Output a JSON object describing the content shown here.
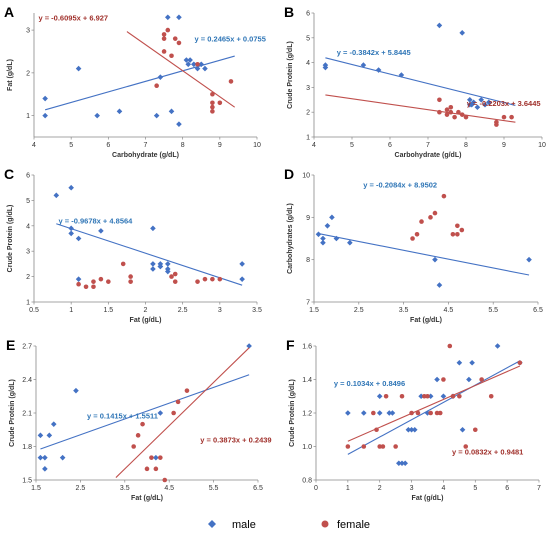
{
  "colors": {
    "male": "#4472C4",
    "female": "#C0504D",
    "male_eq": "#2E75B6",
    "female_eq": "#A0302B"
  },
  "legend": {
    "male": "male",
    "female": "female"
  },
  "chart_data": [
    {
      "type": "scatter",
      "panel": "A",
      "xlabel": "Carbohydrate (g/dL)",
      "ylabel": "Fat (g/dL)",
      "xlim": [
        4,
        10
      ],
      "ylim": [
        0.5,
        3.4
      ],
      "xticks": [
        4,
        5,
        6,
        7,
        8,
        9,
        10
      ],
      "yticks": [
        1,
        2,
        3
      ],
      "series": [
        {
          "name": "male",
          "points": [
            [
              4.3,
              1.4
            ],
            [
              4.3,
              1.0
            ],
            [
              5.2,
              2.1
            ],
            [
              5.7,
              1.0
            ],
            [
              6.3,
              1.1
            ],
            [
              7.3,
              1.0
            ],
            [
              7.4,
              1.9
            ],
            [
              7.6,
              3.3
            ],
            [
              7.7,
              1.1
            ],
            [
              7.9,
              3.3
            ],
            [
              7.9,
              0.8
            ],
            [
              8.1,
              2.3
            ],
            [
              8.15,
              2.2
            ],
            [
              8.2,
              2.3
            ],
            [
              8.3,
              2.2
            ],
            [
              8.4,
              2.1
            ],
            [
              8.5,
              2.2
            ],
            [
              8.6,
              2.1
            ]
          ],
          "trend": {
            "slope": 0.2465,
            "intercept": 0.0755,
            "x": [
              4.3,
              9.4
            ],
            "label": "y = 0.2465x + 0.0755"
          }
        },
        {
          "name": "female",
          "points": [
            [
              7.3,
              1.7
            ],
            [
              7.5,
              2.9
            ],
            [
              7.5,
              2.8
            ],
            [
              7.6,
              3.0
            ],
            [
              7.8,
              2.8
            ],
            [
              7.9,
              2.7
            ],
            [
              7.5,
              2.5
            ],
            [
              7.7,
              2.4
            ],
            [
              8.8,
              1.5
            ],
            [
              8.8,
              1.3
            ],
            [
              8.8,
              1.2
            ],
            [
              8.8,
              1.1
            ],
            [
              9.0,
              1.3
            ],
            [
              9.3,
              1.8
            ],
            [
              8.4,
              2.2
            ]
          ],
          "trend": {
            "slope": -0.6095,
            "intercept": 6.927,
            "x": [
              6.5,
              9.4
            ],
            "label": "y = -0.6095x + 6.927"
          }
        }
      ]
    },
    {
      "type": "scatter",
      "panel": "B",
      "xlabel": "Carbohydrate (g/dL)",
      "ylabel": "Crude Protein (g/dL)",
      "xlim": [
        4,
        10
      ],
      "ylim": [
        1,
        6
      ],
      "xticks": [
        4,
        5,
        6,
        7,
        8,
        9,
        10
      ],
      "yticks": [
        1,
        2,
        3,
        4,
        5,
        6
      ],
      "series": [
        {
          "name": "male",
          "points": [
            [
              4.3,
              3.8
            ],
            [
              4.3,
              3.9
            ],
            [
              5.3,
              3.9
            ],
            [
              5.7,
              3.7
            ],
            [
              6.3,
              3.5
            ],
            [
              7.3,
              5.5
            ],
            [
              7.9,
              5.2
            ],
            [
              8.1,
              2.5
            ],
            [
              8.15,
              2.3
            ],
            [
              8.2,
              2.4
            ],
            [
              8.3,
              2.2
            ],
            [
              8.4,
              2.5
            ],
            [
              8.5,
              2.3
            ],
            [
              8.6,
              2.4
            ],
            [
              8.1,
              2.3
            ]
          ],
          "trend": {
            "slope": -0.3842,
            "intercept": 5.8445,
            "x": [
              4.3,
              9.3
            ],
            "label": "y = -0.3842x + 5.8445"
          }
        },
        {
          "name": "female",
          "points": [
            [
              7.3,
              2.5
            ],
            [
              7.3,
              2.0
            ],
            [
              7.5,
              2.1
            ],
            [
              7.5,
              1.9
            ],
            [
              7.6,
              2.0
            ],
            [
              7.7,
              1.8
            ],
            [
              7.8,
              2.0
            ],
            [
              7.9,
              1.9
            ],
            [
              8.0,
              1.8
            ],
            [
              8.8,
              1.6
            ],
            [
              8.8,
              1.5
            ],
            [
              9.0,
              1.8
            ],
            [
              9.2,
              1.8
            ],
            [
              7.6,
              2.2
            ]
          ],
          "trend": {
            "slope": -0.2203,
            "intercept": 3.6445,
            "x": [
              4.3,
              9.3
            ],
            "label": "y = -0.2203x + 3.6445"
          }
        }
      ]
    },
    {
      "type": "scatter",
      "panel": "C",
      "xlabel": "Fat (g/dL)",
      "ylabel": "Crude Protein (g/dL)",
      "xlim": [
        0.5,
        3.5
      ],
      "ylim": [
        1,
        6
      ],
      "xticks": [
        0.5,
        1,
        1.5,
        2,
        2.5,
        3,
        3.5
      ],
      "yticks": [
        1,
        2,
        3,
        4,
        5,
        6
      ],
      "series": [
        {
          "name": "male",
          "points": [
            [
              0.8,
              5.2
            ],
            [
              1.0,
              5.5
            ],
            [
              1.0,
              3.9
            ],
            [
              1.0,
              3.7
            ],
            [
              1.1,
              3.5
            ],
            [
              1.4,
              3.8
            ],
            [
              1.1,
              1.9
            ],
            [
              2.1,
              3.9
            ],
            [
              2.1,
              2.5
            ],
            [
              2.1,
              2.3
            ],
            [
              2.2,
              2.5
            ],
            [
              2.2,
              2.4
            ],
            [
              2.3,
              2.5
            ],
            [
              2.3,
              2.2
            ],
            [
              2.3,
              2.3
            ],
            [
              3.3,
              2.5
            ],
            [
              3.3,
              1.9
            ],
            [
              2.2,
              2.4
            ]
          ],
          "trend": {
            "slope": -0.9678,
            "intercept": 4.8564,
            "x": [
              0.8,
              3.3
            ],
            "label": "y = -0.9678x + 4.8564"
          }
        },
        {
          "name": "female",
          "points": [
            [
              1.1,
              1.7
            ],
            [
              1.2,
              1.6
            ],
            [
              1.3,
              1.6
            ],
            [
              1.3,
              1.8
            ],
            [
              1.4,
              1.9
            ],
            [
              1.5,
              1.8
            ],
            [
              1.7,
              2.5
            ],
            [
              1.8,
              2.0
            ],
            [
              1.8,
              1.8
            ],
            [
              2.4,
              2.1
            ],
            [
              2.4,
              1.8
            ],
            [
              2.7,
              1.8
            ],
            [
              2.8,
              1.9
            ],
            [
              2.9,
              1.9
            ],
            [
              3.0,
              1.9
            ],
            [
              2.35,
              2.0
            ]
          ]
        }
      ]
    },
    {
      "type": "scatter",
      "panel": "D",
      "xlabel": "Fat (g/dL)",
      "ylabel": "Carbohydrates (g/dL)",
      "xlim": [
        1.5,
        6.5
      ],
      "ylim": [
        7,
        10
      ],
      "xticks": [
        1.5,
        2.5,
        3.5,
        4.5,
        5.5,
        6.5
      ],
      "yticks": [
        7,
        8,
        9,
        10
      ],
      "series": [
        {
          "name": "male",
          "points": [
            [
              1.6,
              8.6
            ],
            [
              1.7,
              8.4
            ],
            [
              1.7,
              8.5
            ],
            [
              1.8,
              8.8
            ],
            [
              1.9,
              9.0
            ],
            [
              2.0,
              8.5
            ],
            [
              2.3,
              8.4
            ],
            [
              4.2,
              8.0
            ],
            [
              4.3,
              7.4
            ],
            [
              6.3,
              8.0
            ]
          ],
          "trend": {
            "slope": -0.2084,
            "intercept": 8.9502,
            "x": [
              1.6,
              6.3
            ],
            "label": "y = -0.2084x + 8.9502"
          }
        },
        {
          "name": "female",
          "points": [
            [
              3.7,
              8.5
            ],
            [
              3.8,
              8.6
            ],
            [
              3.9,
              8.9
            ],
            [
              4.1,
              9.0
            ],
            [
              4.2,
              9.1
            ],
            [
              4.4,
              9.5
            ],
            [
              4.6,
              8.6
            ],
            [
              4.7,
              8.6
            ],
            [
              4.8,
              8.7
            ],
            [
              4.7,
              8.8
            ]
          ]
        }
      ]
    },
    {
      "type": "scatter",
      "panel": "E",
      "xlabel": "Fat (g/dL)",
      "ylabel": "Crude Protein (g/dL)",
      "xlim": [
        1.5,
        6.5
      ],
      "ylim": [
        1.5,
        2.7
      ],
      "xticks": [
        1.5,
        2.5,
        3.5,
        4.5,
        5.5,
        6.5
      ],
      "yticks": [
        1.5,
        1.8,
        2.1,
        2.4,
        2.7
      ],
      "series": [
        {
          "name": "male",
          "points": [
            [
              1.6,
              1.9
            ],
            [
              1.6,
              1.7
            ],
            [
              1.7,
              1.7
            ],
            [
              1.7,
              1.6
            ],
            [
              1.8,
              1.9
            ],
            [
              1.9,
              2.0
            ],
            [
              2.1,
              1.7
            ],
            [
              2.4,
              2.3
            ],
            [
              4.2,
              1.7
            ],
            [
              4.3,
              2.1
            ],
            [
              6.3,
              2.7
            ]
          ],
          "trend": {
            "slope": 0.1415,
            "intercept": 1.5511,
            "x": [
              1.6,
              6.3
            ],
            "label": "y = 0.1415x + 1.5511"
          }
        },
        {
          "name": "female",
          "points": [
            [
              3.7,
              1.8
            ],
            [
              3.8,
              1.9
            ],
            [
              3.9,
              2.0
            ],
            [
              4.0,
              1.6
            ],
            [
              4.1,
              1.7
            ],
            [
              4.2,
              1.6
            ],
            [
              4.3,
              1.7
            ],
            [
              4.4,
              1.5
            ],
            [
              4.6,
              2.1
            ],
            [
              4.7,
              2.2
            ],
            [
              4.9,
              2.3
            ]
          ],
          "trend": {
            "slope": 0.3873,
            "intercept": 0.2439,
            "x": [
              3.3,
              6.3
            ],
            "label": "y = 0.3873x + 0.2439"
          }
        }
      ]
    },
    {
      "type": "scatter",
      "panel": "F",
      "xlabel": "Fat (g/dL)",
      "ylabel": "Crude Protein (g/dL)",
      "xlim": [
        0,
        7
      ],
      "ylim": [
        0.8,
        1.6
      ],
      "xticks": [
        0,
        1,
        2,
        3,
        4,
        5,
        6,
        7
      ],
      "yticks": [
        0.8,
        1.0,
        1.2,
        1.4,
        1.6
      ],
      "series": [
        {
          "name": "male",
          "points": [
            [
              1.0,
              1.2
            ],
            [
              1.5,
              1.2
            ],
            [
              2.0,
              1.3
            ],
            [
              2.0,
              1.2
            ],
            [
              2.3,
              1.2
            ],
            [
              2.4,
              1.2
            ],
            [
              2.6,
              0.9
            ],
            [
              2.7,
              0.9
            ],
            [
              2.8,
              0.9
            ],
            [
              2.9,
              1.1
            ],
            [
              3.0,
              1.1
            ],
            [
              3.1,
              1.1
            ],
            [
              3.3,
              1.3
            ],
            [
              3.6,
              1.3
            ],
            [
              3.8,
              1.4
            ],
            [
              4.0,
              1.3
            ],
            [
              4.3,
              1.3
            ],
            [
              4.5,
              1.5
            ],
            [
              4.6,
              1.1
            ],
            [
              4.8,
              1.4
            ],
            [
              4.9,
              1.5
            ],
            [
              5.7,
              1.6
            ],
            [
              6.4,
              1.5
            ],
            [
              3.5,
              1.2
            ]
          ],
          "trend": {
            "slope": 0.1034,
            "intercept": 0.8496,
            "x": [
              1.0,
              6.4
            ],
            "label": "y = 0.1034x + 0.8496"
          }
        },
        {
          "name": "female",
          "points": [
            [
              1.0,
              1.0
            ],
            [
              1.5,
              1.0
            ],
            [
              1.8,
              1.2
            ],
            [
              1.9,
              1.1
            ],
            [
              2.0,
              1.0
            ],
            [
              2.1,
              1.0
            ],
            [
              2.2,
              1.3
            ],
            [
              2.5,
              1.0
            ],
            [
              2.7,
              1.3
            ],
            [
              3.0,
              1.2
            ],
            [
              3.2,
              1.2
            ],
            [
              3.4,
              1.3
            ],
            [
              3.5,
              1.3
            ],
            [
              3.6,
              1.2
            ],
            [
              3.8,
              1.2
            ],
            [
              4.0,
              1.4
            ],
            [
              4.2,
              1.6
            ],
            [
              4.3,
              1.3
            ],
            [
              4.5,
              1.3
            ],
            [
              4.7,
              1.0
            ],
            [
              5.0,
              1.1
            ],
            [
              5.2,
              1.4
            ],
            [
              5.5,
              1.3
            ],
            [
              6.4,
              1.5
            ],
            [
              3.9,
              1.2
            ]
          ],
          "trend": {
            "slope": 0.0832,
            "intercept": 0.9481,
            "x": [
              1.0,
              6.4
            ],
            "label": "y = 0.0832x + 0.9481"
          }
        }
      ]
    }
  ]
}
